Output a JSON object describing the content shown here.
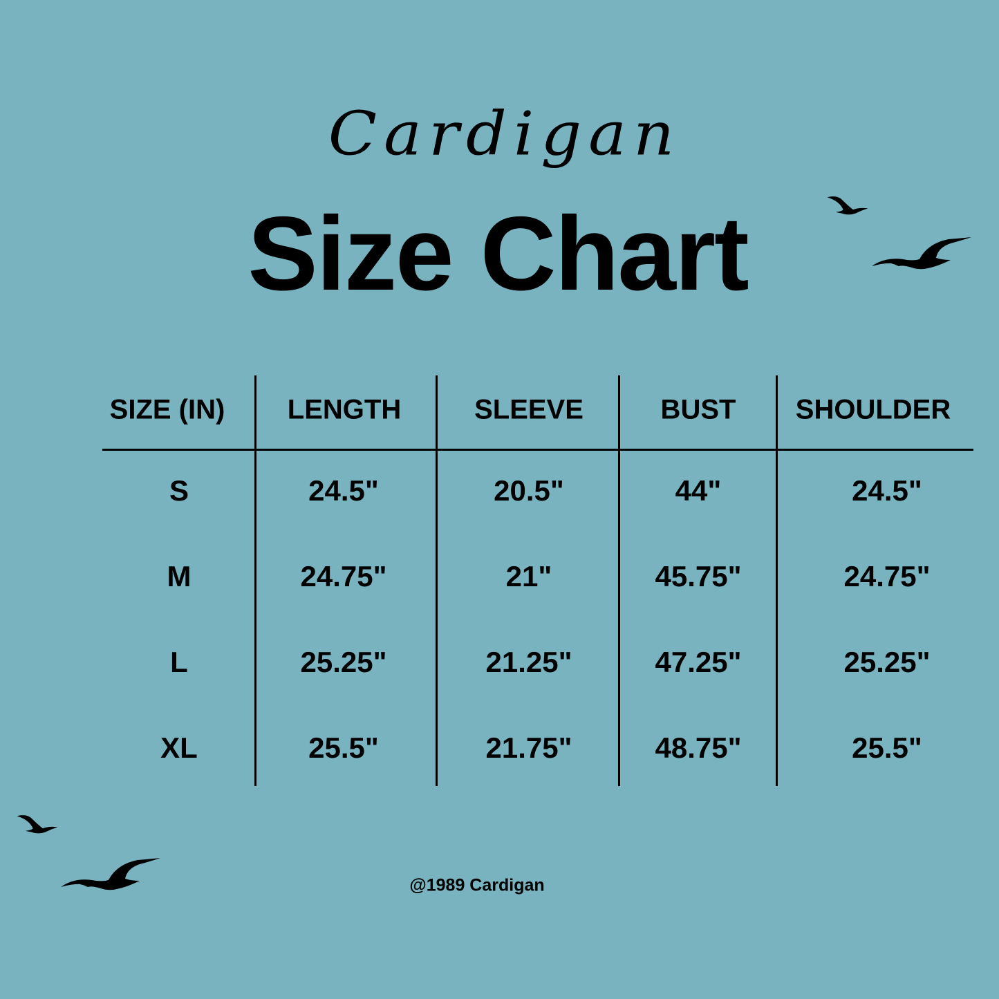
{
  "header": {
    "script_title": "Cardigan",
    "title": "Size Chart"
  },
  "table": {
    "columns": [
      "SIZE (IN)",
      "LENGTH",
      "SLEEVE",
      "BUST",
      "SHOULDER"
    ],
    "rows": [
      [
        "S",
        "24.5\"",
        "20.5\"",
        "44\"",
        "24.5\""
      ],
      [
        "M",
        "24.75\"",
        "21\"",
        "45.75\"",
        "24.75\""
      ],
      [
        "L",
        "25.25\"",
        "21.25\"",
        "47.25\"",
        "25.25\""
      ],
      [
        "XL",
        "25.5\"",
        "21.75\"",
        "48.75\"",
        "25.5\""
      ]
    ]
  },
  "footer": {
    "text": "@1989 Cardigan"
  },
  "colors": {
    "background": "#79b3c0",
    "ink": "#000000"
  },
  "decorations": [
    "seagull-icon",
    "seagull-icon",
    "seagull-icon",
    "seagull-icon"
  ]
}
